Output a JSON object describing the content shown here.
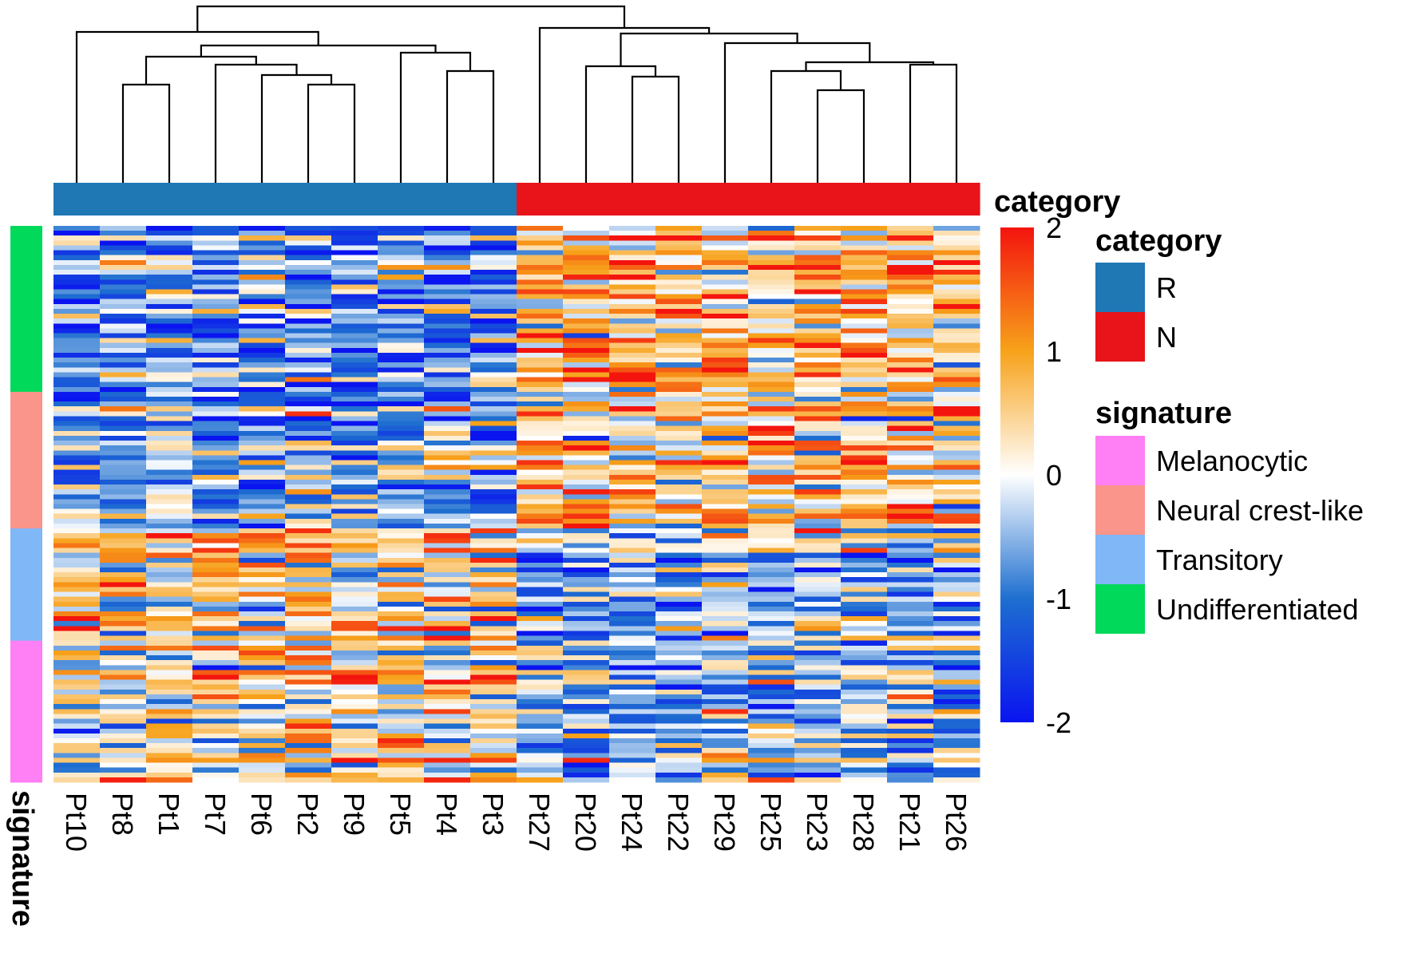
{
  "chart_data": {
    "type": "heatmap",
    "title": "",
    "columns": [
      "Pt10",
      "Pt8",
      "Pt1",
      "Pt7",
      "Pt6",
      "Pt2",
      "Pt9",
      "Pt5",
      "Pt4",
      "Pt3",
      "Pt27",
      "Pt20",
      "Pt24",
      "Pt22",
      "Pt29",
      "Pt25",
      "Pt23",
      "Pt28",
      "Pt21",
      "Pt26"
    ],
    "column_category": [
      "R",
      "R",
      "R",
      "R",
      "R",
      "R",
      "R",
      "R",
      "R",
      "R",
      "N",
      "N",
      "N",
      "N",
      "N",
      "N",
      "N",
      "N",
      "N",
      "N"
    ],
    "row_signature_groups": [
      {
        "signature": "Undifferentiated",
        "rows": 34
      },
      {
        "signature": "Neural crest-like",
        "rows": 28
      },
      {
        "signature": "Transitory",
        "rows": 23
      },
      {
        "signature": "Melanocytic",
        "rows": 29
      }
    ],
    "n_rows": 114,
    "color_scale": {
      "title": "category",
      "min": -2,
      "max": 2,
      "ticks": [
        "2",
        "1",
        "0",
        "-1",
        "-2"
      ],
      "stops": [
        {
          "value": -2,
          "color": "#0a14f0"
        },
        {
          "value": -1,
          "color": "#1e6fd0"
        },
        {
          "value": 0,
          "color": "#ffffff"
        },
        {
          "value": 1,
          "color": "#f7a21a"
        },
        {
          "value": 2,
          "color": "#f4140e"
        }
      ]
    },
    "row_annotation_title": "signature",
    "column_dendrogram": true,
    "description": "Per-sample z-scores; R samples skew low in Undifferentiated/Neural crest-like rows and high in Transitory/Melanocytic rows; N samples show the opposite pattern."
  },
  "legend": {
    "category": {
      "title": "category",
      "items": [
        {
          "label": "R",
          "color": "#1f77b4"
        },
        {
          "label": "N",
          "color": "#e8141a"
        }
      ]
    },
    "signature": {
      "title": "signature",
      "items": [
        {
          "label": "Melanocytic",
          "color": "#ff7ff5"
        },
        {
          "label": "Neural crest-like",
          "color": "#fa958b"
        },
        {
          "label": "Transitory",
          "color": "#80b7f7"
        },
        {
          "label": "Undifferentiated",
          "color": "#00d95a"
        }
      ]
    }
  },
  "colorbar_heading": "category",
  "row_annotation_label": "signature"
}
